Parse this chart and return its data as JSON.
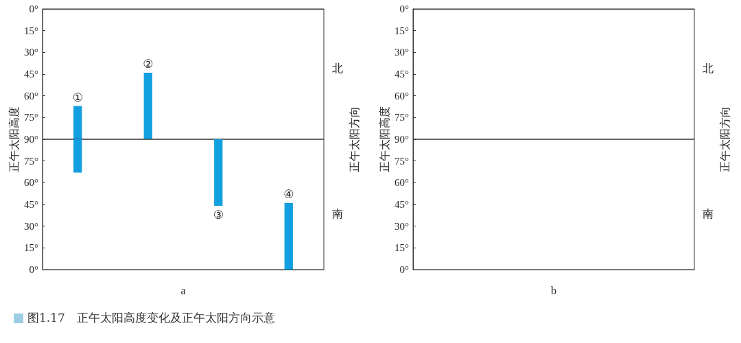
{
  "chart_data": [
    {
      "type": "bar",
      "ylabel": "正午太阳高度",
      "y2label": "正午太阳方向",
      "categories": [
        "①",
        "②",
        null,
        null
      ],
      "base": [
        90,
        90,
        null,
        null
      ],
      "values": [
        -23,
        -46,
        null,
        null
      ],
      "color": "#13a0e0",
      "ylim": [
        90,
        0
      ],
      "yticks": [
        {
          "value": 0,
          "label": "0°"
        },
        {
          "value": 15,
          "label": "15°"
        },
        {
          "value": 30,
          "label": "30°"
        },
        {
          "value": 45,
          "label": "45°"
        },
        {
          "value": 60,
          "label": "60°"
        },
        {
          "value": 75,
          "label": "75°"
        },
        {
          "value": 90,
          "label": "90°"
        }
      ],
      "annotations": [
        "北"
      ]
    },
    {
      "type": "bar",
      "xlabel": "a",
      "categories": [
        null,
        null,
        "③",
        "④"
      ],
      "base": [
        90,
        null,
        90,
        0
      ],
      "values": [
        -23,
        null,
        -46,
        46
      ],
      "color": "#13a0e0",
      "ylim": [
        0,
        90
      ],
      "yticks": [
        {
          "value": 75,
          "label": "75°"
        },
        {
          "value": 60,
          "label": "60°"
        },
        {
          "value": 45,
          "label": "45°"
        },
        {
          "value": 30,
          "label": "30°"
        },
        {
          "value": 15,
          "label": "15°"
        },
        {
          "value": 0,
          "label": "0°"
        }
      ],
      "annotations": [
        "南",
        "图1.17　正午太阳高度变化及正午太阳方向示意"
      ]
    },
    {
      "type": "bar",
      "ylabel": "正午太阳高度",
      "y2label": "正午太阳方向",
      "categories": [
        null,
        null,
        null,
        null
      ],
      "values": [
        null,
        null,
        null,
        null
      ],
      "ylim": [
        90,
        0
      ],
      "yticks": [
        {
          "value": 0,
          "label": "0°"
        },
        {
          "value": 15,
          "label": "15°"
        },
        {
          "value": 30,
          "label": "30°"
        },
        {
          "value": 45,
          "label": "45°"
        },
        {
          "value": 60,
          "label": "60°"
        },
        {
          "value": 75,
          "label": "75°"
        },
        {
          "value": 90,
          "label": "90°"
        }
      ],
      "annotations": [
        "北"
      ]
    },
    {
      "type": "bar",
      "xlabel": "b",
      "categories": [
        null,
        null,
        null,
        null
      ],
      "values": [
        null,
        null,
        null,
        null
      ],
      "ylim": [
        0,
        90
      ],
      "yticks": [
        {
          "value": 75,
          "label": "75°"
        },
        {
          "value": 60,
          "label": "60°"
        },
        {
          "value": 45,
          "label": "45°"
        },
        {
          "value": 30,
          "label": "30°"
        },
        {
          "value": 15,
          "label": "15°"
        },
        {
          "value": 0,
          "label": "0°"
        }
      ],
      "annotations": [
        "南"
      ]
    }
  ]
}
